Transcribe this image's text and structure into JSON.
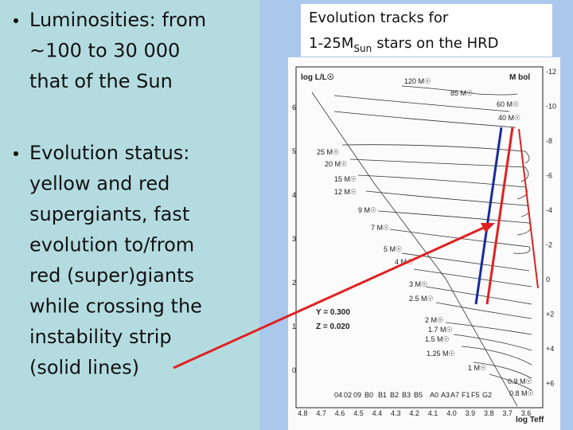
{
  "slide": {
    "bullets": [
      {
        "lines": [
          "Luminosities: from",
          "~100 to 30 000",
          "that of the Sun"
        ]
      },
      {
        "lines": [
          "Evolution status:",
          "yellow and red",
          "supergiants, fast",
          "evolution to/from",
          "red (super)giants",
          "while crossing the",
          "instability strip",
          "(solid lines)"
        ]
      }
    ],
    "figure": {
      "title_line1": "Evolution tracks for",
      "title_line2": {
        "main": "1-25M",
        "sub": "Sun",
        "rest": "stars on the HRD"
      },
      "y_label": "log L/L☉",
      "y2_label": "M bol",
      "x_label": "log Teff",
      "y_ticks": [
        "6",
        "5",
        "4",
        "3",
        "2",
        "1",
        "0"
      ],
      "y2_ticks": [
        "-12",
        "-10",
        "-8",
        "-6",
        "-4",
        "-2",
        "0",
        "+2",
        "+4",
        "+6"
      ],
      "x_ticks": [
        "4.8",
        "4.7",
        "4.6",
        "4.5",
        "4.4",
        "4.3",
        "4.2",
        "4.1",
        "4.0",
        "3.9",
        "3.8",
        "3.7",
        "3.6"
      ],
      "spectral_types": [
        "04",
        "02",
        "09",
        "B0",
        "B1",
        "B2",
        "B3",
        "B5",
        "A0",
        "A3",
        "A7",
        "F1",
        "F5",
        "G2"
      ],
      "masses": [
        "120 M☉",
        "85 M☉",
        "60 M☉",
        "40 M☉",
        "25 M☉",
        "20 M☉",
        "15 M☉",
        "12 M☉",
        "9 M☉",
        "7 M☉",
        "5 M☉",
        "4 M☉",
        "3 M☉",
        "2.5 M☉",
        "2 M☉",
        "1.7 M☉",
        "1.5 M☉",
        "1.25 M☉",
        "1 M☉",
        "0.9 M☉",
        "0.8 M☉"
      ],
      "composition": [
        "Y = 0.300",
        "Z = 0.020"
      ]
    }
  }
}
